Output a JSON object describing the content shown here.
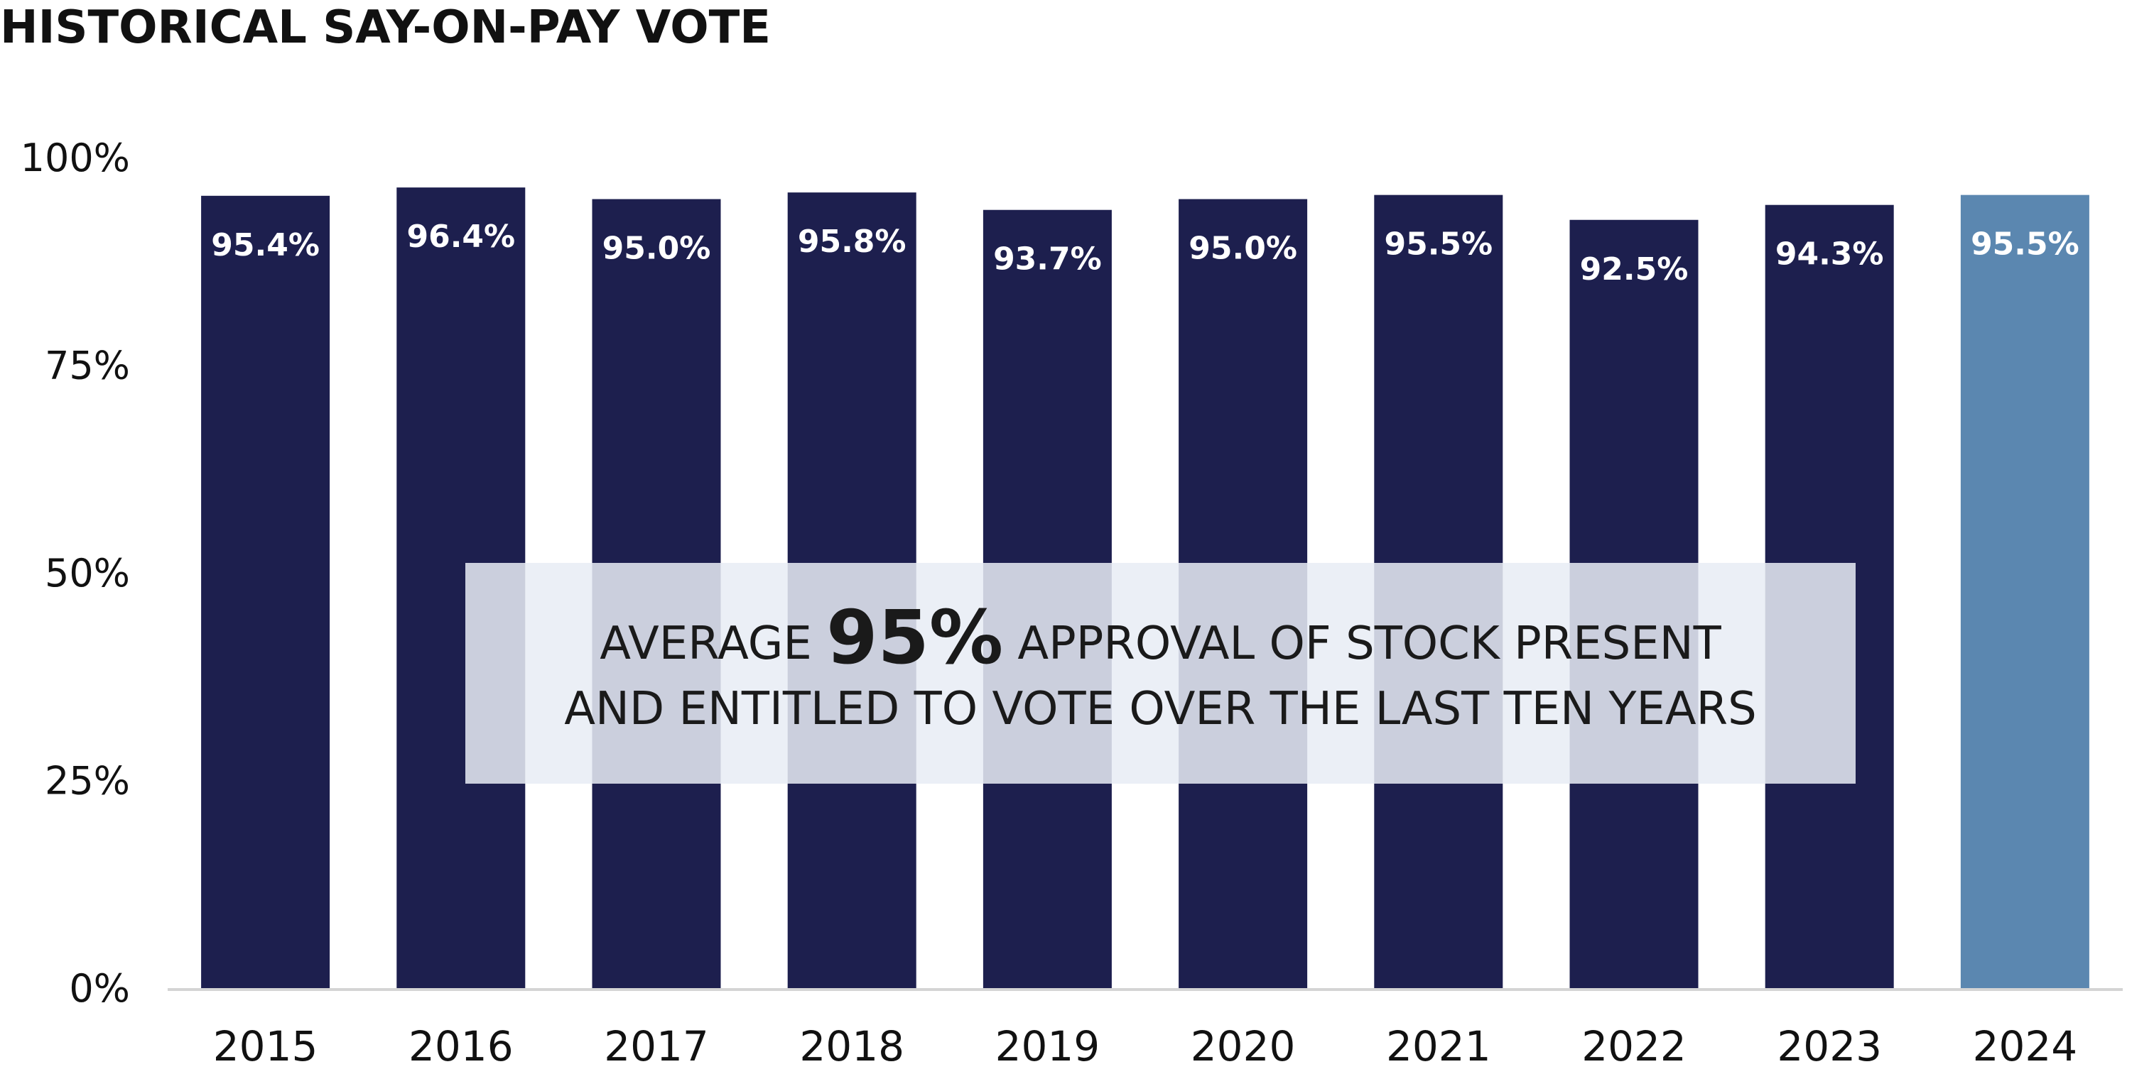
{
  "chart_data": {
    "type": "bar",
    "title": "HISTORICAL SAY-ON-PAY VOTE",
    "categories": [
      "2015",
      "2016",
      "2017",
      "2018",
      "2019",
      "2020",
      "2021",
      "2022",
      "2023",
      "2024"
    ],
    "values": [
      95.4,
      96.4,
      95.0,
      95.8,
      93.7,
      95.0,
      95.5,
      92.5,
      94.3,
      95.5
    ],
    "value_labels": [
      "95.4%",
      "96.4%",
      "95.0%",
      "95.8%",
      "93.7%",
      "95.0%",
      "95.5%",
      "92.5%",
      "94.3%",
      "95.5%"
    ],
    "ylim": [
      0,
      100
    ],
    "yticks": [
      0,
      25,
      50,
      75,
      100
    ],
    "ytick_labels": [
      "0%",
      "25%",
      "50%",
      "75%",
      "100%"
    ],
    "xlabel": "",
    "ylabel": "",
    "grid": false,
    "colors": {
      "default": "#1d1f4e",
      "highlight": "#5b87b0",
      "axis": "#d4d4d4"
    },
    "highlight_index": 9
  },
  "callout": {
    "line1_prefix": "AVERAGE ",
    "line1_big": "95%",
    "line1_suffix": " APPROVAL OF STOCK PRESENT",
    "line2": "AND ENTITLED TO VOTE OVER THE LAST TEN YEARS"
  }
}
